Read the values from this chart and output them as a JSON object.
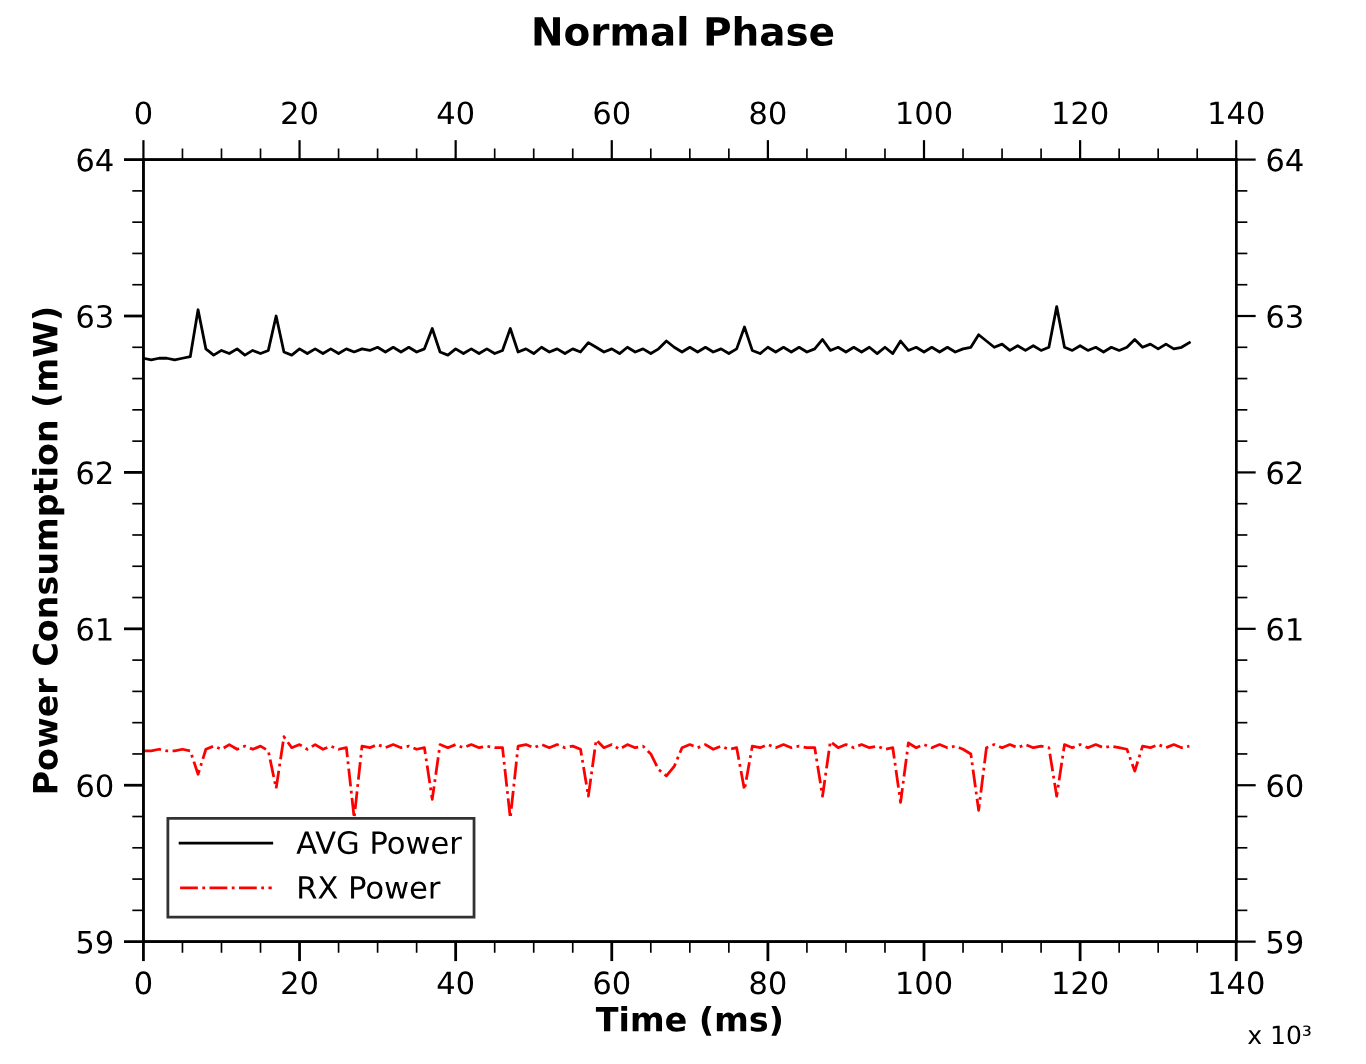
{
  "chart_data": {
    "type": "line",
    "title": "Normal Phase",
    "xlabel": "Time (ms)",
    "ylabel": "Power Consumption (mW)",
    "annotations": [
      "x 10³"
    ],
    "x": [
      0,
      1,
      2,
      3,
      4,
      5,
      6,
      7,
      8,
      9,
      10,
      11,
      12,
      13,
      14,
      15,
      16,
      17,
      18,
      19,
      20,
      21,
      22,
      23,
      24,
      25,
      26,
      27,
      28,
      29,
      30,
      31,
      32,
      33,
      34,
      35,
      36,
      37,
      38,
      39,
      40,
      41,
      42,
      43,
      44,
      45,
      46,
      47,
      48,
      49,
      50,
      51,
      52,
      53,
      54,
      55,
      56,
      57,
      58,
      59,
      60,
      61,
      62,
      63,
      64,
      65,
      66,
      67,
      68,
      69,
      70,
      71,
      72,
      73,
      74,
      75,
      76,
      77,
      78,
      79,
      80,
      81,
      82,
      83,
      84,
      85,
      86,
      87,
      88,
      89,
      90,
      91,
      92,
      93,
      94,
      95,
      96,
      97,
      98,
      99,
      100,
      101,
      102,
      103,
      104,
      105,
      106,
      107,
      108,
      109,
      110,
      111,
      112,
      113,
      114,
      115,
      116,
      117,
      118,
      119,
      120,
      121,
      122,
      123,
      124,
      125,
      126,
      127,
      128,
      129,
      130,
      131,
      132,
      133,
      134
    ],
    "series": [
      {
        "name": "AVG Power",
        "color": "#000000",
        "line_style": "solid",
        "values": [
          62.73,
          62.72,
          62.73,
          62.73,
          62.72,
          62.73,
          62.74,
          63.04,
          62.79,
          62.75,
          62.78,
          62.76,
          62.79,
          62.75,
          62.78,
          62.76,
          62.78,
          63.0,
          62.77,
          62.75,
          62.79,
          62.76,
          62.79,
          62.76,
          62.79,
          62.76,
          62.79,
          62.77,
          62.79,
          62.78,
          62.8,
          62.77,
          62.8,
          62.77,
          62.8,
          62.77,
          62.79,
          62.92,
          62.77,
          62.75,
          62.79,
          62.76,
          62.79,
          62.76,
          62.79,
          62.76,
          62.78,
          62.92,
          62.77,
          62.79,
          62.76,
          62.8,
          62.77,
          62.79,
          62.76,
          62.79,
          62.77,
          62.83,
          62.8,
          62.77,
          62.79,
          62.76,
          62.8,
          62.77,
          62.79,
          62.76,
          62.79,
          62.84,
          62.8,
          62.77,
          62.8,
          62.77,
          62.8,
          62.77,
          62.79,
          62.76,
          62.79,
          62.93,
          62.78,
          62.76,
          62.8,
          62.77,
          62.8,
          62.77,
          62.8,
          62.77,
          62.79,
          62.85,
          62.78,
          62.8,
          62.77,
          62.8,
          62.77,
          62.8,
          62.76,
          62.8,
          62.76,
          62.84,
          62.78,
          62.8,
          62.77,
          62.8,
          62.77,
          62.8,
          62.77,
          62.79,
          62.8,
          62.88,
          62.84,
          62.8,
          62.82,
          62.78,
          62.81,
          62.78,
          62.81,
          62.78,
          62.8,
          63.06,
          62.8,
          62.78,
          62.81,
          62.78,
          62.8,
          62.77,
          62.8,
          62.78,
          62.8,
          62.85,
          62.8,
          62.82,
          62.79,
          62.82,
          62.79,
          62.8,
          62.83
        ]
      },
      {
        "name": "RX Power",
        "color": "#ff0000",
        "line_style": "dashdot",
        "values": [
          60.22,
          60.22,
          60.23,
          60.22,
          60.22,
          60.23,
          60.22,
          60.07,
          60.23,
          60.25,
          60.23,
          60.26,
          60.23,
          60.25,
          60.23,
          60.25,
          60.22,
          59.98,
          60.31,
          60.24,
          60.26,
          60.23,
          60.26,
          60.23,
          60.25,
          60.23,
          60.24,
          59.79,
          60.25,
          60.24,
          60.26,
          60.24,
          60.26,
          60.24,
          60.25,
          60.23,
          60.24,
          59.91,
          60.26,
          60.24,
          60.26,
          60.24,
          60.26,
          60.24,
          60.25,
          60.24,
          60.24,
          59.79,
          60.25,
          60.26,
          60.24,
          60.26,
          60.24,
          60.26,
          60.24,
          60.25,
          60.23,
          59.93,
          60.29,
          60.24,
          60.26,
          60.23,
          60.26,
          60.24,
          60.25,
          60.2,
          60.1,
          60.06,
          60.12,
          60.24,
          60.26,
          60.24,
          60.26,
          60.23,
          60.25,
          60.23,
          60.24,
          59.97,
          60.25,
          60.24,
          60.26,
          60.24,
          60.26,
          60.24,
          60.25,
          60.24,
          60.24,
          59.93,
          60.28,
          60.24,
          60.26,
          60.24,
          60.26,
          60.24,
          60.25,
          60.23,
          60.24,
          59.89,
          60.27,
          60.24,
          60.26,
          60.24,
          60.26,
          60.24,
          60.25,
          60.23,
          60.2,
          59.84,
          60.24,
          60.26,
          60.24,
          60.26,
          60.24,
          60.26,
          60.24,
          60.25,
          60.24,
          59.93,
          60.26,
          60.24,
          60.26,
          60.24,
          60.26,
          60.24,
          60.25,
          60.24,
          60.23,
          60.09,
          60.25,
          60.24,
          60.26,
          60.24,
          60.26,
          60.24,
          60.25
        ]
      }
    ],
    "xlim": [
      0,
      140
    ],
    "xticks": [
      0,
      20,
      40,
      60,
      80,
      100,
      120,
      140
    ],
    "x2lim": [
      0,
      140
    ],
    "x2ticks": [
      0,
      20,
      40,
      60,
      80,
      100,
      120,
      140
    ],
    "ylim": [
      59,
      64
    ],
    "yticks": [
      59,
      60,
      61,
      62,
      63,
      64
    ],
    "y2lim": [
      59,
      64
    ],
    "y2ticks": [
      59,
      60,
      61,
      62,
      63,
      64
    ],
    "grid": false,
    "legend": "bottom left",
    "marker": "none"
  }
}
